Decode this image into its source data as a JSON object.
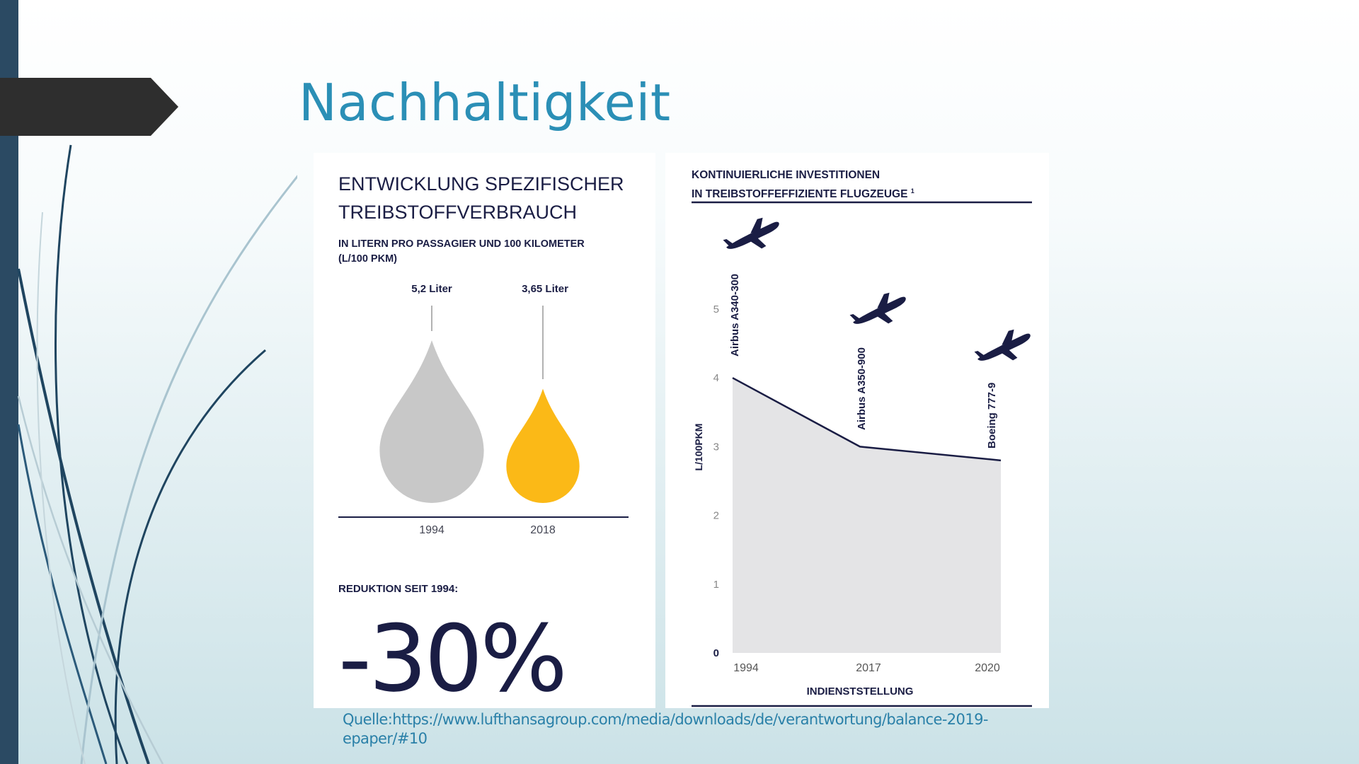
{
  "slide": {
    "title": "Nachhaltigkeit",
    "source": "Quelle:https://www.lufthansagroup.com/media/downloads/de/verantwortung/balance-2019-epaper/#10",
    "colors": {
      "accent": "#2b8fb6",
      "sidebar": "#2b4a63",
      "arrow": "#2e2e2e",
      "navy": "#1a1d44"
    }
  },
  "left_panel": {
    "title_line1": "ENTWICKLUNG SPEZIFISCHER",
    "title_line2": "TREIBSTOFFVERBRAUCH",
    "subtitle_line1": "IN LITERN PRO PASSAGIER UND 100 KILOMETER",
    "subtitle_line2": "(L/100 PKM)",
    "reduction_label": "REDUKTION SEIT 1994:",
    "reduction_value": "-30%"
  },
  "right_panel": {
    "header_line1": "KONTINUIERLICHE INVESTITIONEN",
    "header_line2": "IN TREIBSTOFFEFFIZIENTE FLUGZEUGE",
    "footnote_mark": "1",
    "icon": "airplane-icon"
  },
  "chart_data": [
    {
      "type": "bar",
      "categories": [
        "1994",
        "2018"
      ],
      "values": [
        5.2,
        3.65
      ],
      "data_labels": [
        "5,2 Liter",
        "3,65 Liter"
      ],
      "colors": [
        "#c8c8c8",
        "#fbb917"
      ],
      "mark_shape": "drop",
      "title": "ENTWICKLUNG SPEZIFISCHER TREIBSTOFFVERBRAUCH",
      "subtitle": "IN LITERN PRO PASSAGIER UND 100 KILOMETER (L/100 PKM)"
    },
    {
      "type": "area",
      "x": [
        "1994",
        "2017",
        "2020"
      ],
      "values": [
        4.0,
        3.0,
        2.8
      ],
      "annotations": [
        "Airbus A340-300",
        "Airbus A350-900",
        "Boeing 777-9"
      ],
      "title": "KONTINUIERLICHE INVESTITIONEN IN TREIBSTOFFEFFIZIENTE FLUGZEUGE",
      "xlabel": "INDIENSTSTELLUNG",
      "ylabel": "L/100PKM",
      "y_ticks": [
        "0",
        "1",
        "2",
        "3",
        "4",
        "5"
      ],
      "ylim": [
        0,
        5
      ],
      "grid": false,
      "fill": "#e4e4e6",
      "line": "#1a1d44"
    }
  ]
}
